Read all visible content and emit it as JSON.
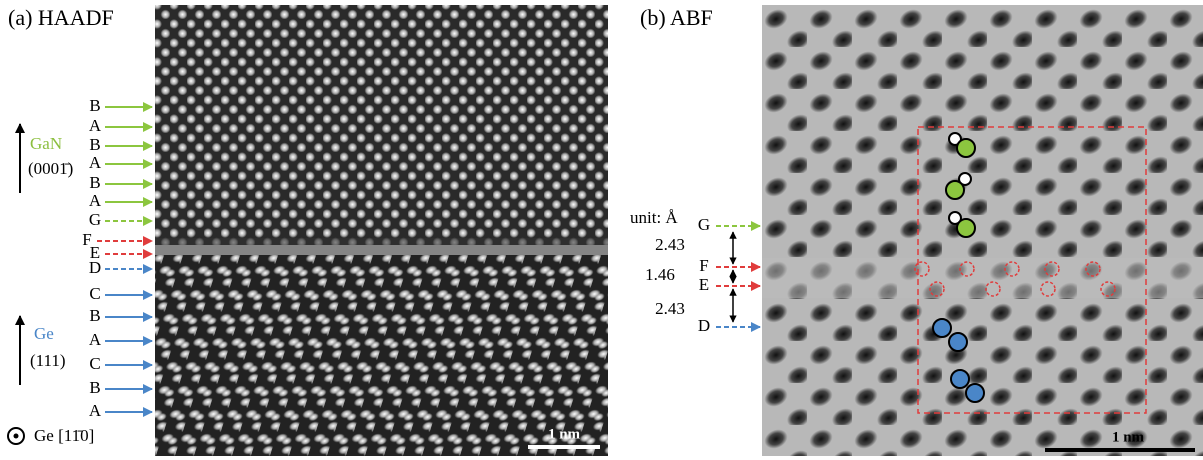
{
  "panel_a": {
    "title": "(a) HAADF",
    "layers": [
      "B",
      "A",
      "B",
      "A",
      "B",
      "A",
      "G",
      "F",
      "E",
      "D",
      "C",
      "B",
      "A",
      "C",
      "B",
      "A"
    ],
    "gan_label": "GaN",
    "gan_direction": "(0001̄)",
    "ge_label": "Ge",
    "ge_direction": "(111)",
    "zone_axis": "Ge [11̄0]",
    "scale_bar": "1 nm"
  },
  "panel_b": {
    "title": "(b) ABF",
    "unit": "unit: Å",
    "layers": [
      "G",
      "F",
      "E",
      "D"
    ],
    "spacings": [
      "2.43",
      "1.46",
      "2.43"
    ],
    "scale_bar": "1 nm"
  }
}
